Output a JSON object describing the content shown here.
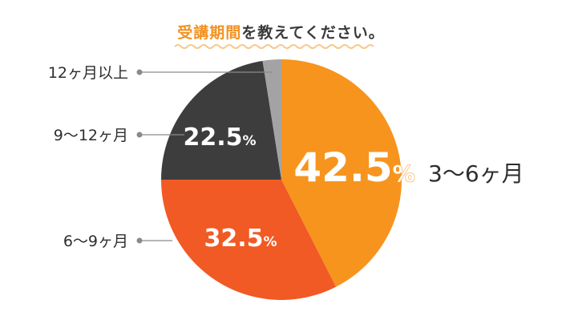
{
  "title": {
    "highlight": "受講期間",
    "rest": "を教えてください。",
    "highlight_color": "#f29222"
  },
  "chart_data": {
    "type": "pie",
    "title": "受講期間を教えてください。",
    "start_angle_deg": 0,
    "direction": "clockwise",
    "slices": [
      {
        "label": "3〜6ヶ月",
        "value": 42.5,
        "display": "42.5%",
        "color": "#f7941e"
      },
      {
        "label": "6〜9ヶ月",
        "value": 32.5,
        "display": "32.5%",
        "color": "#f15a24"
      },
      {
        "label": "9〜12ヶ月",
        "value": 22.5,
        "display": "22.5%",
        "color": "#3d3d3d"
      },
      {
        "label": "12ヶ月以上",
        "value": 2.5,
        "display": "",
        "color": "#a3a3a3"
      }
    ]
  }
}
